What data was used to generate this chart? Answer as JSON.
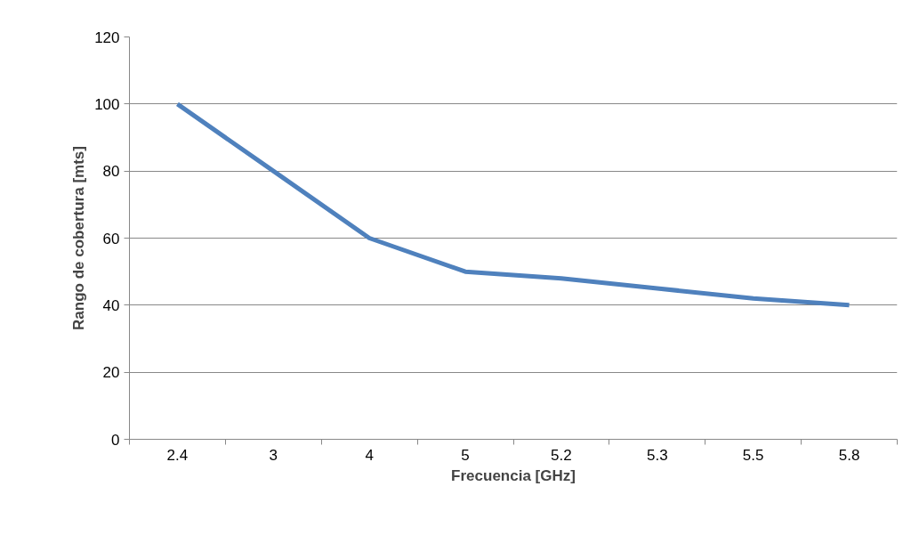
{
  "chart_data": {
    "type": "line",
    "xlabel": "Frecuencia [GHz]",
    "ylabel": "Rango de cobertura [mts]",
    "categories": [
      "2.4",
      "3",
      "4",
      "5",
      "5.2",
      "5.3",
      "5.5",
      "5.8"
    ],
    "series": [
      {
        "color": "#4f81bd",
        "values": [
          100,
          80,
          60,
          50,
          48,
          45,
          42,
          40
        ]
      }
    ],
    "ylim": [
      0,
      120
    ],
    "yticks": [
      0,
      20,
      40,
      60,
      80,
      100,
      120
    ],
    "grid": "y",
    "marker": "none",
    "line_style": "solid"
  }
}
